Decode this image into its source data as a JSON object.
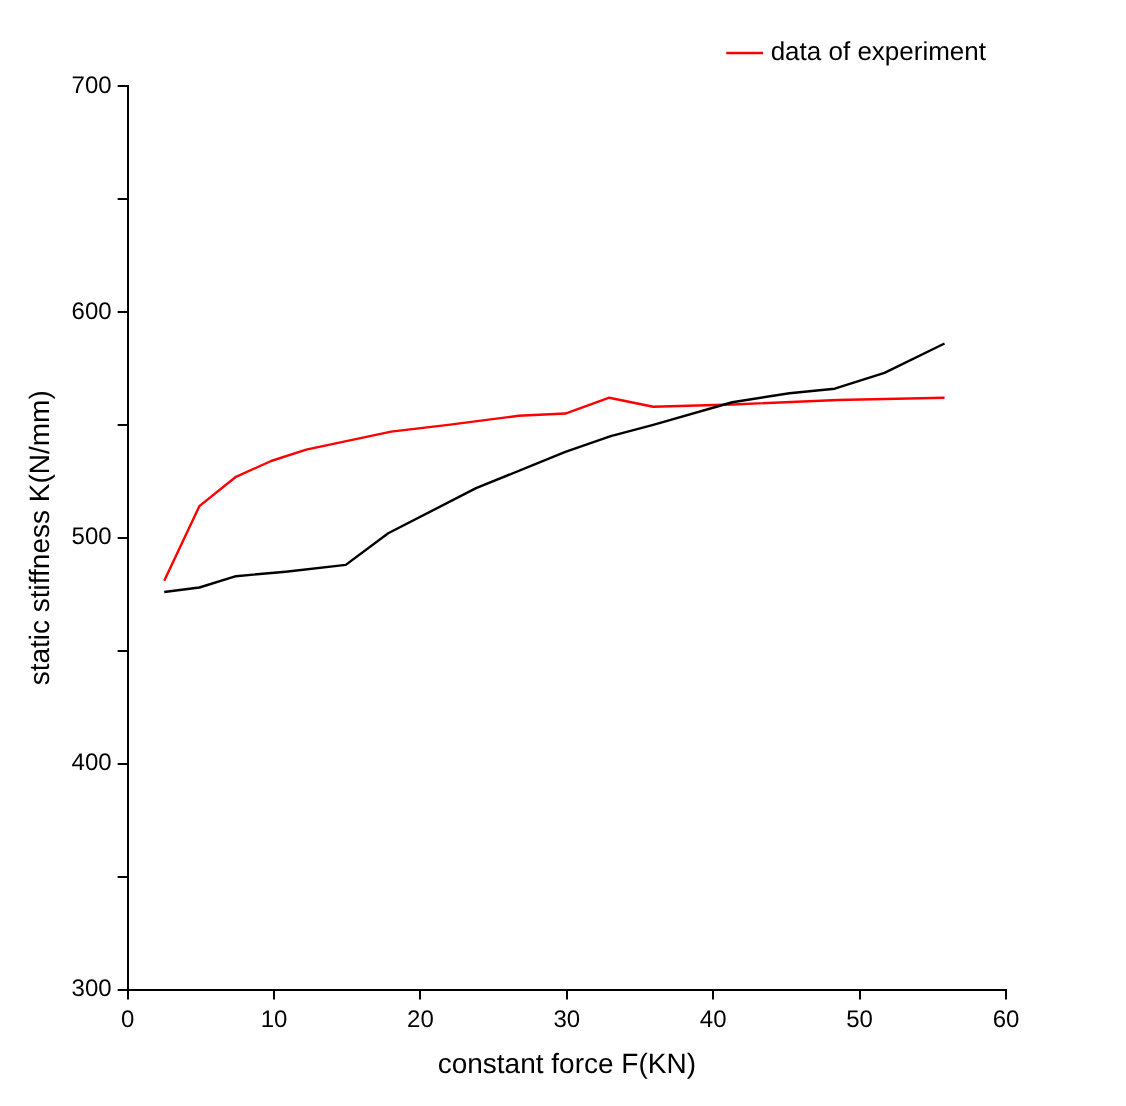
{
  "chart_data": {
    "type": "line",
    "xlabel": "constant force F(KN)",
    "ylabel": "static stiffness K(N/mm)",
    "xlim": [
      0,
      60
    ],
    "xticks": [
      0,
      10,
      20,
      30,
      40,
      50,
      60
    ],
    "ylim": [
      300,
      700
    ],
    "yticks": [
      300,
      {
        "value": 350,
        "label": null
      },
      400,
      {
        "value": 450,
        "label": null
      },
      500,
      {
        "value": 550,
        "label": null
      },
      600,
      {
        "value": 650,
        "label": null
      },
      700
    ],
    "grid": false,
    "legend": "top right",
    "marker": "none",
    "line_style": "solid",
    "series": [
      {
        "color": "#000000",
        "x": [
          2.5,
          4.9,
          7.4,
          10.8,
          14.9,
          17.8,
          23.8,
          29.9,
          33.0,
          35.9,
          41.3,
          45.2,
          48.3,
          51.7,
          55.8
        ],
        "values": [
          476,
          478,
          483,
          485,
          488,
          502,
          522,
          538,
          545,
          550,
          560,
          564,
          566,
          573,
          586
        ]
      },
      {
        "name": "data of experiment",
        "color": "#ff0000",
        "x": [
          2.5,
          4.9,
          7.4,
          9.8,
          12.2,
          15.1,
          18.0,
          21.9,
          26.7,
          29.9,
          32.9,
          35.9,
          41.3,
          48.5,
          55.8
        ],
        "values": [
          481,
          514,
          527,
          534,
          539,
          543,
          547,
          550,
          554,
          555,
          562,
          558,
          559,
          561,
          562
        ]
      }
    ]
  }
}
